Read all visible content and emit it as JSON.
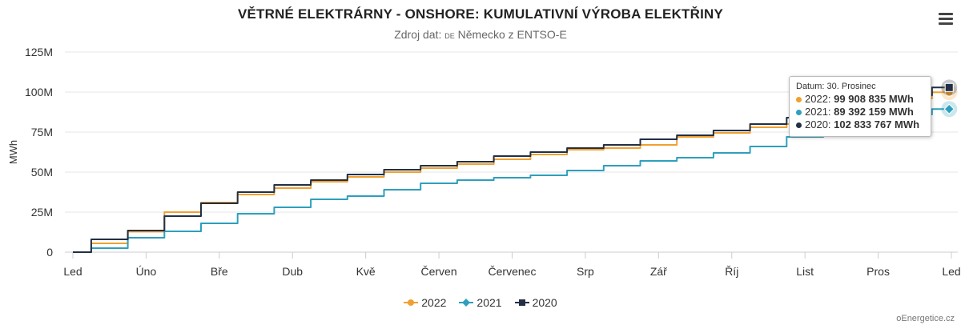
{
  "chart_data": {
    "type": "line",
    "title": "VĚTRNÉ ELEKTRÁRNY - ONSHORE: KUMULATIVNÍ VÝROBA ELEKTŘINY",
    "subtitle_prefix": "Zdroj dat:",
    "subtitle_country_code": "DE",
    "subtitle_suffix": "Německo z ENTSO-E",
    "ylabel": "MWh",
    "ylim": [
      0,
      125000000
    ],
    "yticks": [
      0,
      25000000,
      50000000,
      75000000,
      100000000,
      125000000
    ],
    "ytick_labels": [
      "0",
      "25M",
      "50M",
      "75M",
      "100M",
      "125M"
    ],
    "x_categories": [
      "Led",
      "Úno",
      "Bře",
      "Dub",
      "Kvě",
      "Červen",
      "Červenec",
      "Srp",
      "Zář",
      "Říj",
      "List",
      "Pros",
      "Led"
    ],
    "xlim": [
      0,
      12
    ],
    "grid": true,
    "legend_position": "bottom-center",
    "series": [
      {
        "name": "2022",
        "color": "#f0a030",
        "marker": "circle",
        "x": [
          0,
          0.5,
          1.0,
          1.5,
          2.0,
          2.5,
          3.0,
          3.5,
          4.0,
          4.5,
          5.0,
          5.5,
          6.0,
          6.5,
          7.0,
          7.5,
          8.0,
          8.5,
          9.0,
          9.5,
          10.0,
          10.5,
          11.0,
          11.5,
          11.97
        ],
        "y": [
          0,
          5500000,
          12800000,
          25000000,
          31000000,
          36000000,
          40000000,
          44000000,
          47000000,
          50000000,
          52500000,
          55000000,
          58000000,
          61000000,
          64000000,
          65000000,
          67000000,
          72000000,
          74500000,
          78000000,
          80000000,
          84000000,
          89000000,
          96000000,
          99908835
        ]
      },
      {
        "name": "2021",
        "color": "#2e9fbd",
        "marker": "diamond",
        "x": [
          0,
          0.5,
          1.0,
          1.5,
          2.0,
          2.5,
          3.0,
          3.5,
          4.0,
          4.5,
          5.0,
          5.5,
          6.0,
          6.5,
          7.0,
          7.5,
          8.0,
          8.5,
          9.0,
          9.5,
          10.0,
          10.5,
          11.0,
          11.5,
          11.97
        ],
        "y": [
          0,
          2500000,
          9000000,
          13000000,
          18000000,
          24000000,
          28000000,
          33000000,
          35000000,
          39000000,
          43000000,
          45000000,
          46500000,
          48000000,
          51000000,
          54000000,
          57000000,
          59000000,
          62000000,
          66000000,
          72000000,
          76000000,
          80000000,
          86000000,
          89392159
        ]
      },
      {
        "name": "2020",
        "color": "#222f45",
        "marker": "square",
        "x": [
          0,
          0.5,
          1.0,
          1.5,
          2.0,
          2.5,
          3.0,
          3.5,
          4.0,
          4.5,
          5.0,
          5.5,
          6.0,
          6.5,
          7.0,
          7.5,
          8.0,
          8.5,
          9.0,
          9.5,
          10.0,
          10.5,
          11.0,
          11.5,
          11.97
        ],
        "y": [
          0,
          8000000,
          13500000,
          22500000,
          30500000,
          37500000,
          42000000,
          45000000,
          48500000,
          51500000,
          54000000,
          56500000,
          60000000,
          62500000,
          65000000,
          67000000,
          70500000,
          73000000,
          76000000,
          80000000,
          84000000,
          88000000,
          93000000,
          98000000,
          102833767
        ]
      }
    ],
    "tooltip": {
      "header": "Datum: 30. Prosinec",
      "rows": [
        {
          "series": "2022",
          "value": "99 908 835 MWh",
          "color": "#f0a030"
        },
        {
          "series": "2021",
          "value": "89 392 159 MWh",
          "color": "#2e9fbd"
        },
        {
          "series": "2020",
          "value": "102 833 767 MWh",
          "color": "#222f45"
        }
      ]
    }
  },
  "credit": "oEnergetice.cz",
  "menu_icon": "hamburger-menu-icon"
}
